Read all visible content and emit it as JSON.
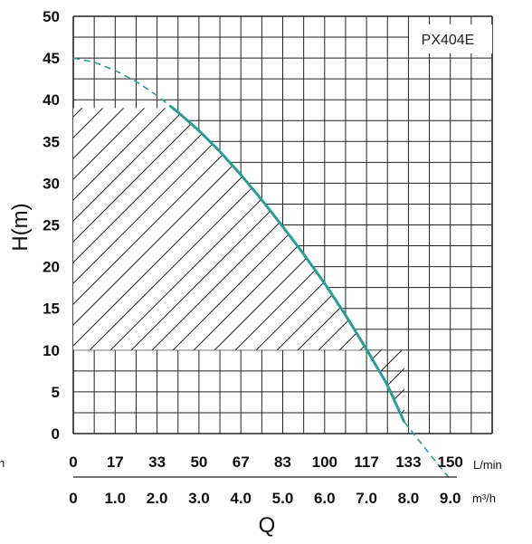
{
  "chart_data": {
    "type": "line",
    "title": "",
    "model_label": "PX404E",
    "ylabel": "H(m)",
    "xlabel": "Q",
    "ylim": [
      0,
      50
    ],
    "yticks": [
      "0",
      "5",
      "10",
      "15",
      "20",
      "25",
      "30",
      "35",
      "40",
      "45",
      "50"
    ],
    "x_axes": [
      {
        "unit": "L/min",
        "ticks": [
          "0",
          "17",
          "33",
          "50",
          "67",
          "83",
          "100",
          "117",
          "133",
          "150"
        ]
      },
      {
        "unit": "m³/h",
        "ticks": [
          "0",
          "1.0",
          "2.0",
          "3.0",
          "4.0",
          "5.0",
          "6.0",
          "7.0",
          "8.0",
          "9.0"
        ]
      }
    ],
    "left_edge_label": "n",
    "xlim_m3h": [
      0,
      10
    ],
    "grid": true,
    "series": [
      {
        "x": [
          0,
          0.5,
          1.0,
          1.5,
          2.0,
          2.5,
          3.0,
          3.5,
          4.0,
          4.5,
          5.0,
          5.5,
          6.0,
          6.5,
          7.0,
          7.5,
          7.9,
          8.5,
          9.0
        ],
        "y": [
          45,
          44.5,
          43.5,
          42.2,
          40.5,
          38.5,
          36.3,
          33.8,
          31,
          28,
          24.8,
          21.5,
          18,
          14.2,
          10.1,
          5.8,
          1.4,
          -2.4,
          -5.5
        ]
      }
    ],
    "solid_range_m3h": [
      2.3,
      7.9
    ],
    "operating_region": {
      "x_range_m3h": [
        0,
        7.9
      ],
      "h_range": [
        10,
        39
      ]
    }
  }
}
